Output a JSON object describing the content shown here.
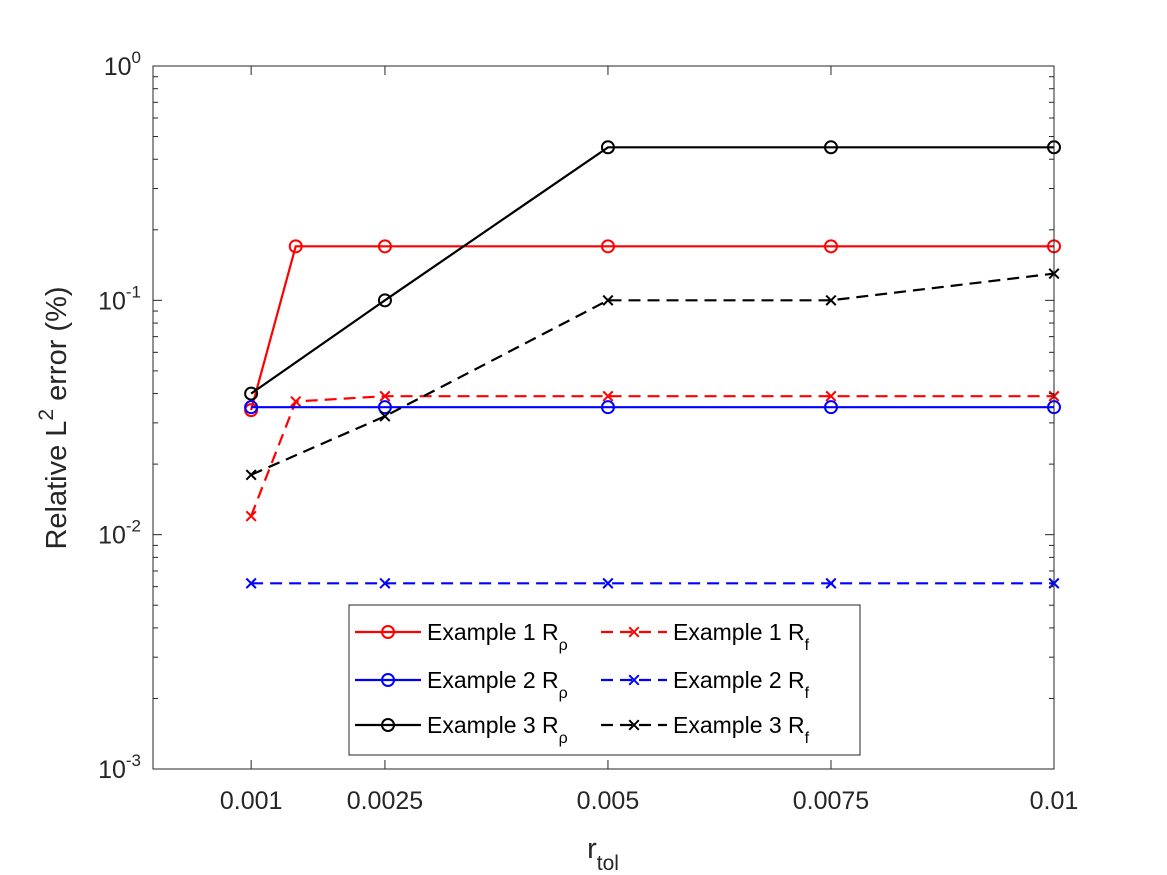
{
  "chart_data": {
    "type": "line",
    "x_scale": "linear",
    "y_scale": "log",
    "xlim": [
      -0.0001,
      0.01
    ],
    "ylim": [
      0.001,
      1
    ],
    "xticks": [
      0.001,
      0.0025,
      0.005,
      0.0075,
      0.01
    ],
    "xtick_labels": [
      "0.001",
      "0.0025",
      "0.005",
      "0.0075",
      "0.01"
    ],
    "yticks": [
      0.001,
      0.01,
      0.1,
      1
    ],
    "ytick_labels": [
      {
        "base": "10",
        "exp": "-3"
      },
      {
        "base": "10",
        "exp": "-2"
      },
      {
        "base": "10",
        "exp": "-1"
      },
      {
        "base": "10",
        "exp": "0"
      }
    ],
    "xlabel": {
      "main": "r",
      "sub": "tol"
    },
    "ylabel": {
      "pre": "Relative L",
      "sup": "2",
      "post": " error (%)"
    },
    "grid": false,
    "box": true,
    "legend_position": "lower-center",
    "legend_columns": 2,
    "series": [
      {
        "name": "Example 1 R",
        "name_sub": "ρ",
        "color": "#ff0000",
        "dash": "solid",
        "marker": "circle",
        "x": [
          0.001,
          0.0015,
          0.0025,
          0.005,
          0.0075,
          0.01
        ],
        "y": [
          0.034,
          0.17,
          0.17,
          0.17,
          0.17,
          0.17
        ]
      },
      {
        "name": "Example 1 R",
        "name_sub": "f",
        "color": "#ff0000",
        "dash": "dashed",
        "marker": "x",
        "x": [
          0.001,
          0.0015,
          0.0025,
          0.005,
          0.0075,
          0.01
        ],
        "y": [
          0.012,
          0.037,
          0.039,
          0.039,
          0.039,
          0.039
        ]
      },
      {
        "name": "Example 2 R",
        "name_sub": "ρ",
        "color": "#0000ff",
        "dash": "solid",
        "marker": "circle",
        "x": [
          0.001,
          0.0025,
          0.005,
          0.0075,
          0.01
        ],
        "y": [
          0.035,
          0.035,
          0.035,
          0.035,
          0.035
        ]
      },
      {
        "name": "Example 2 R",
        "name_sub": "f",
        "color": "#0000ff",
        "dash": "dashed",
        "marker": "x",
        "x": [
          0.001,
          0.0025,
          0.005,
          0.0075,
          0.01
        ],
        "y": [
          0.0062,
          0.0062,
          0.0062,
          0.0062,
          0.0062
        ]
      },
      {
        "name": "Example 3 R",
        "name_sub": "ρ",
        "color": "#000000",
        "dash": "solid",
        "marker": "circle",
        "x": [
          0.001,
          0.0025,
          0.005,
          0.0075,
          0.01
        ],
        "y": [
          0.04,
          0.1,
          0.45,
          0.45,
          0.45
        ]
      },
      {
        "name": "Example 3 R",
        "name_sub": "f",
        "color": "#000000",
        "dash": "dashed",
        "marker": "x",
        "x": [
          0.001,
          0.0025,
          0.005,
          0.0075,
          0.01
        ],
        "y": [
          0.018,
          0.032,
          0.1,
          0.1,
          0.13
        ]
      }
    ]
  }
}
